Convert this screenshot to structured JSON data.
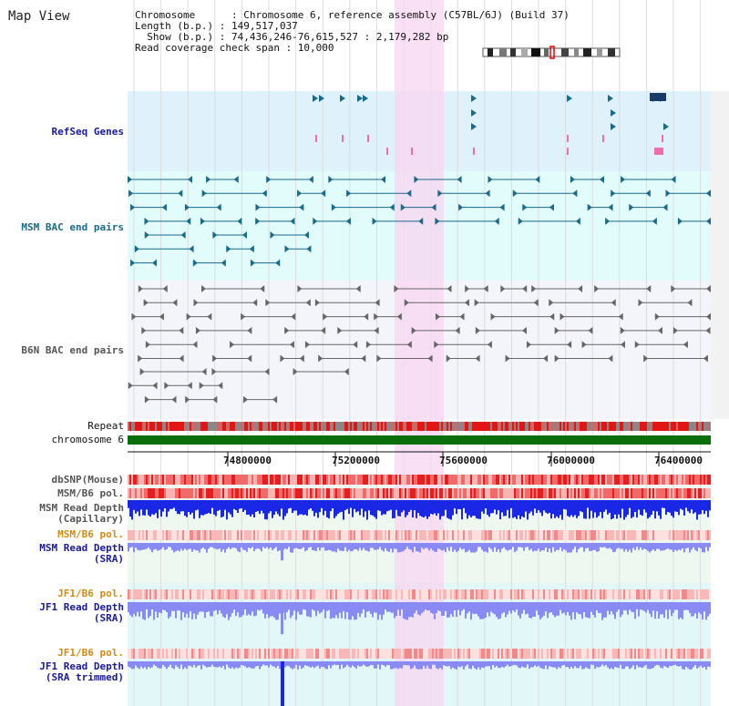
{
  "panel_title": "Map View",
  "info": {
    "chromosome": "Chromosome      : Chromosome 6, reference assembly (C57BL/6J) (Build 37)",
    "length": "Length (b.p.) : 149,517,037",
    "show": "  Show (b.p.) : 74,436,246-76,615,527 : 2,179,282 bp",
    "coverage": "Read coverage check span : 10,000"
  },
  "tracks": {
    "refseq": "RefSeq Genes",
    "msm_bac": "MSM BAC end pairs",
    "b6n_bac": "B6N BAC end pairs",
    "repeat": "Repeat",
    "chromosome": "chromosome 6",
    "dbsnp": "dbSNP(Mouse)",
    "msm_b6_pol": "MSM/B6 pol.",
    "msm_read_depth_cap": "MSM Read Depth\n(Capillary)",
    "msm_b6_pol2": "MSM/B6 pol.",
    "msm_read_depth_sra": "MSM Read Depth\n(SRA)",
    "jf1_b6_pol": "JF1/B6 pol.",
    "jf1_read_depth_sra": "JF1 Read Depth\n(SRA)",
    "jf1_b6_pol2": "JF1/B6 pol.",
    "jf1_read_depth_trim": "JF1 Read Depth\n(SRA trimmed)"
  },
  "axis_ticks": [
    "74800000",
    "75200000",
    "75600000",
    "76000000",
    "76400000"
  ],
  "colors": {
    "refseq_bg": "#dff1fb",
    "msm_bg": "#e2fbfb",
    "b6n_bg": "#f4f4fb",
    "highlight": "#f8d8f2",
    "chrom_bar": "#0a6e0a",
    "track_label_blue": "#1a1a9a",
    "track_label_teal": "#1a6a8a",
    "track_label_gray": "#555555",
    "track_label_orange": "#d58a10",
    "depth_blue": "#1a28e6",
    "depth_light": "#8a8af5"
  }
}
